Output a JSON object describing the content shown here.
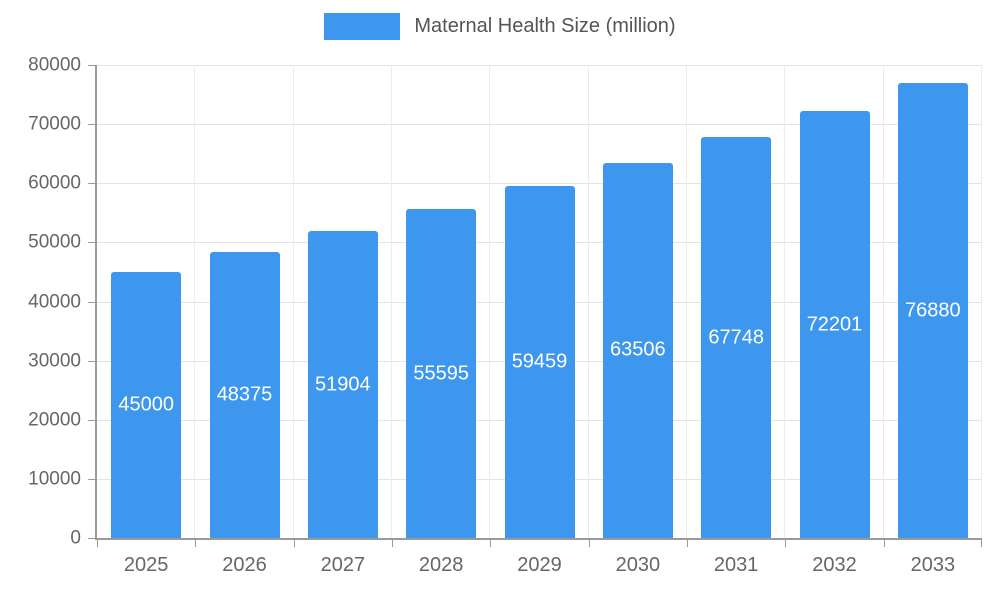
{
  "chart_data": {
    "type": "bar",
    "title": "Maternal Health Size (million)",
    "legend": "Maternal Health Size (million)",
    "categories": [
      "2025",
      "2026",
      "2027",
      "2028",
      "2029",
      "2030",
      "2031",
      "2032",
      "2033"
    ],
    "values": [
      45000,
      48375,
      51904,
      55595,
      59459,
      63506,
      67748,
      72201,
      76880
    ],
    "xlabel": "",
    "ylabel": "",
    "ylim": [
      0,
      80000
    ],
    "ytick_step": 10000,
    "grid": "on",
    "legend_position": "top-center",
    "colors": {
      "bar": "#3d97ee",
      "value_label": "#ffffff",
      "axis": "#9a9a9a",
      "tick_label": "#666666",
      "legend_text": "#555555",
      "gridline": "#e4e4e4",
      "background": "#ffffff"
    }
  }
}
